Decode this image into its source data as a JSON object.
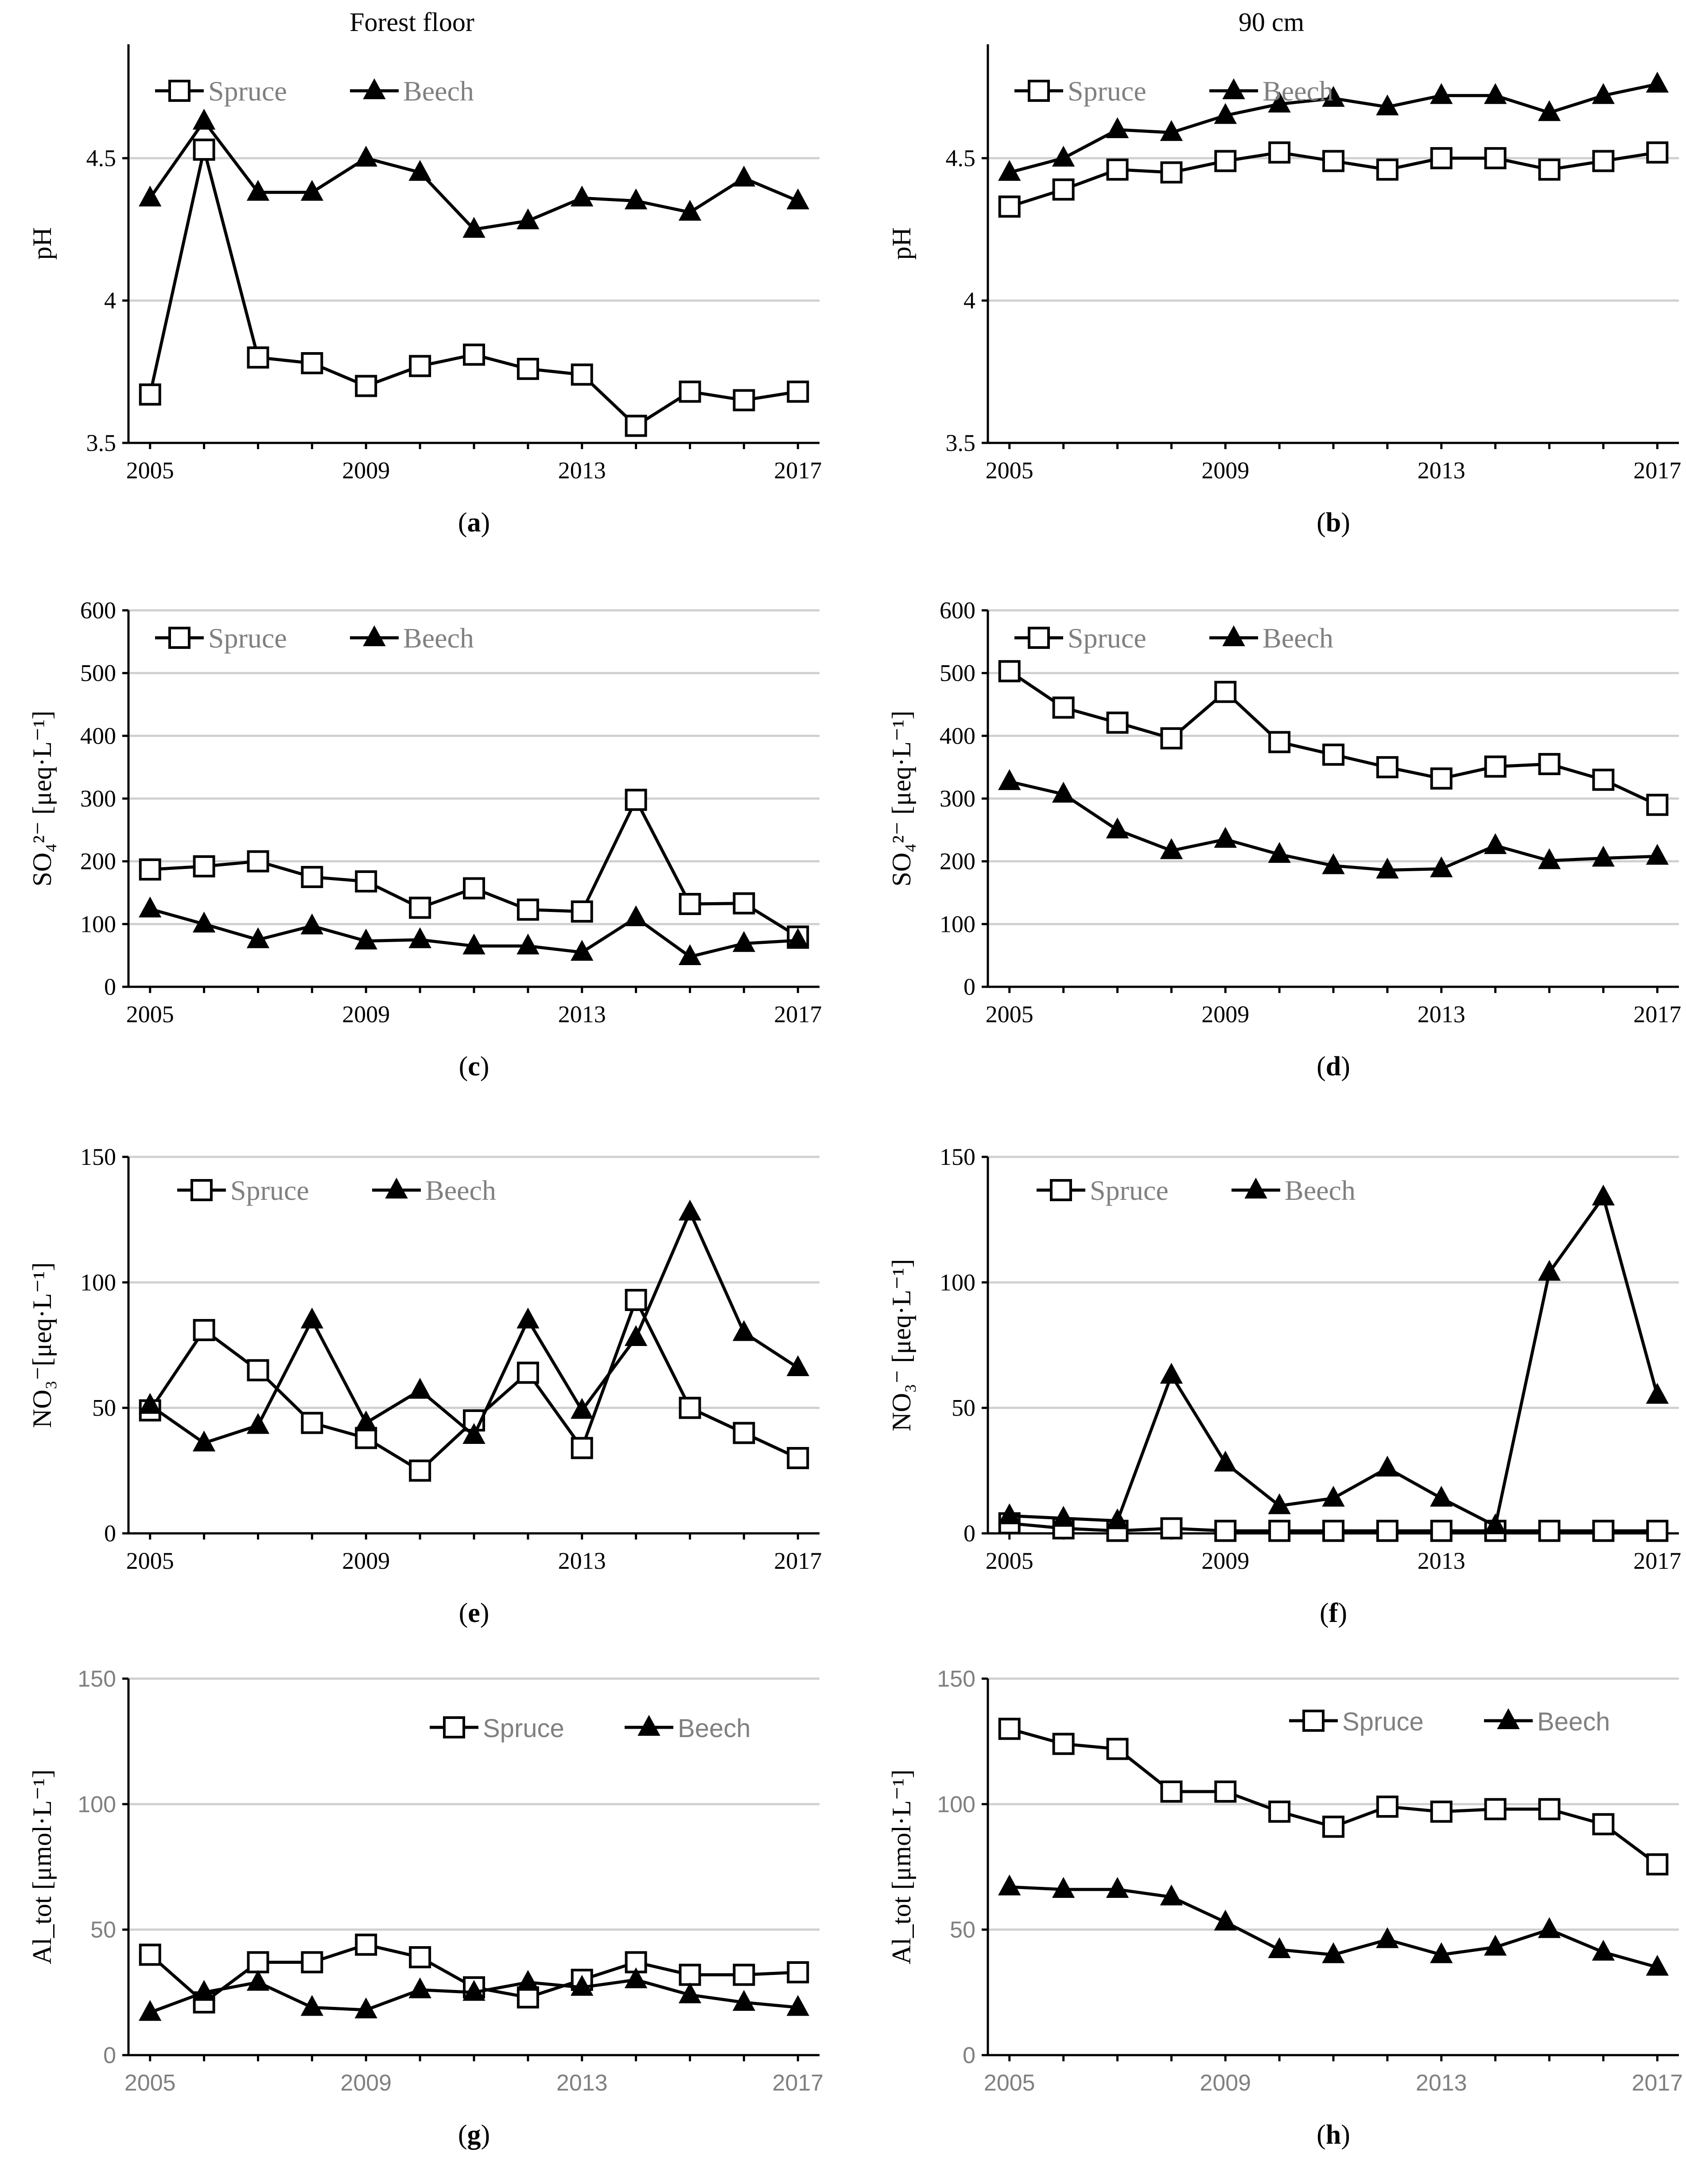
{
  "column_titles": [
    "Forest floor",
    "90 cm"
  ],
  "x_ticks": [
    2005,
    2009,
    2013,
    2017
  ],
  "x_years": [
    2005,
    2006,
    2007,
    2008,
    2009,
    2010,
    2011,
    2012,
    2013,
    2014,
    2015,
    2016,
    2017
  ],
  "colors": {
    "line": "#000000",
    "grid": "#d0d0d0",
    "legend_text": "#808080"
  },
  "chart_data": [
    {
      "id": "a",
      "caption_letter": "a",
      "type": "line",
      "ylabel": "pH",
      "ylim": [
        3.5,
        4.9
      ],
      "yticks": [
        3.5,
        4,
        4.5
      ],
      "ytick_labels": [
        "3.5",
        "4",
        "4.5"
      ],
      "grid": true,
      "legend_position": "top-left",
      "series": [
        {
          "name": "Spruce",
          "marker": "square",
          "values": [
            3.67,
            4.53,
            3.8,
            3.78,
            3.7,
            3.77,
            3.81,
            3.76,
            3.74,
            3.56,
            3.68,
            3.65,
            3.68
          ]
        },
        {
          "name": "Beech",
          "marker": "triangle",
          "values": [
            4.36,
            4.63,
            4.38,
            4.38,
            4.5,
            4.45,
            4.25,
            4.28,
            4.36,
            4.35,
            4.31,
            4.43,
            4.35
          ]
        }
      ]
    },
    {
      "id": "b",
      "caption_letter": "b",
      "type": "line",
      "ylabel": "pH",
      "ylim": [
        3.5,
        4.9
      ],
      "yticks": [
        3.5,
        4,
        4.5
      ],
      "ytick_labels": [
        "3.5",
        "4",
        "4.5"
      ],
      "grid": true,
      "legend_position": "top-left",
      "series": [
        {
          "name": "Spruce",
          "marker": "square",
          "values": [
            4.33,
            4.39,
            4.46,
            4.45,
            4.49,
            4.52,
            4.49,
            4.46,
            4.5,
            4.5,
            4.46,
            4.49,
            4.52
          ]
        },
        {
          "name": "Beech",
          "marker": "triangle",
          "values": [
            4.45,
            4.5,
            4.6,
            4.59,
            4.65,
            4.69,
            4.71,
            4.68,
            4.72,
            4.72,
            4.66,
            4.72,
            4.76
          ]
        }
      ]
    },
    {
      "id": "c",
      "caption_letter": "c",
      "type": "line",
      "ylabel": "SO₄²⁻ [μeq·L⁻¹]",
      "ylim": [
        0,
        600
      ],
      "yticks": [
        0,
        100,
        200,
        300,
        400,
        500,
        600
      ],
      "ytick_labels": [
        "0",
        "100",
        "200",
        "300",
        "400",
        "500",
        "600"
      ],
      "grid": true,
      "legend_position": "top-left",
      "series": [
        {
          "name": "Spruce",
          "marker": "square",
          "values": [
            187,
            192,
            200,
            175,
            168,
            126,
            157,
            123,
            120,
            298,
            132,
            133,
            80
          ]
        },
        {
          "name": "Beech",
          "marker": "triangle",
          "values": [
            124,
            100,
            75,
            97,
            73,
            75,
            65,
            65,
            55,
            110,
            48,
            69,
            74
          ]
        }
      ]
    },
    {
      "id": "d",
      "caption_letter": "d",
      "type": "line",
      "ylabel": "SO₄²⁻ [μeq·L⁻¹]",
      "ylim": [
        0,
        600
      ],
      "yticks": [
        0,
        100,
        200,
        300,
        400,
        500,
        600
      ],
      "ytick_labels": [
        "0",
        "100",
        "200",
        "300",
        "400",
        "500",
        "600"
      ],
      "grid": true,
      "legend_position": "top-left",
      "series": [
        {
          "name": "Spruce",
          "marker": "square",
          "values": [
            503,
            445,
            421,
            396,
            470,
            390,
            370,
            350,
            332,
            351,
            355,
            330,
            290
          ]
        },
        {
          "name": "Beech",
          "marker": "triangle",
          "values": [
            327,
            307,
            250,
            217,
            235,
            211,
            193,
            186,
            188,
            225,
            201,
            205,
            208
          ]
        }
      ]
    },
    {
      "id": "e",
      "caption_letter": "e",
      "type": "line",
      "ylabel": "NO₃⁻[μeq·L⁻¹]",
      "ylim": [
        0,
        150
      ],
      "yticks": [
        0,
        50,
        100,
        150
      ],
      "ytick_labels": [
        "0",
        "50",
        "100",
        "150"
      ],
      "grid": true,
      "legend_position": "top-left",
      "series": [
        {
          "name": "Spruce",
          "marker": "square",
          "values": [
            49,
            81,
            65,
            44,
            38,
            25,
            45,
            64,
            34,
            93,
            50,
            40,
            30
          ]
        },
        {
          "name": "Beech",
          "marker": "triangle",
          "values": [
            51,
            36,
            43,
            85,
            44,
            57,
            39,
            85,
            49,
            78,
            128,
            80,
            66
          ]
        }
      ]
    },
    {
      "id": "f",
      "caption_letter": "f",
      "type": "line",
      "ylabel": "NO₃⁻ [μeq·L⁻¹]",
      "ylim": [
        0,
        150
      ],
      "yticks": [
        0,
        50,
        100,
        150
      ],
      "ytick_labels": [
        "0",
        "50",
        "100",
        "150"
      ],
      "grid": true,
      "legend_position": "top-left",
      "series": [
        {
          "name": "Spruce",
          "marker": "square",
          "values": [
            4,
            2,
            1,
            2,
            1,
            1,
            1,
            1,
            1,
            1,
            1,
            1,
            1
          ]
        },
        {
          "name": "Beech",
          "marker": "triangle",
          "values": [
            7,
            6,
            5,
            63,
            28,
            11,
            14,
            26,
            14,
            3,
            104,
            134,
            55
          ]
        }
      ]
    },
    {
      "id": "g",
      "caption_letter": "g",
      "type": "line",
      "ylabel": "Al_tot [μmol·L⁻¹]",
      "ylim": [
        0,
        150
      ],
      "yticks": [
        0,
        50,
        100,
        150
      ],
      "ytick_labels": [
        "0",
        "50",
        "100",
        "150"
      ],
      "grid": true,
      "legend_position": "top-right",
      "series": [
        {
          "name": "Spruce",
          "marker": "square",
          "values": [
            40,
            21,
            37,
            37,
            44,
            39,
            27,
            23,
            30,
            37,
            32,
            32,
            33
          ]
        },
        {
          "name": "Beech",
          "marker": "triangle",
          "values": [
            17,
            25,
            29,
            19,
            18,
            26,
            25,
            29,
            27,
            30,
            24,
            21,
            19
          ]
        }
      ]
    },
    {
      "id": "h",
      "caption_letter": "h",
      "type": "line",
      "ylabel": "Al_tot [μmol·L⁻¹]",
      "ylim": [
        0,
        150
      ],
      "yticks": [
        0,
        50,
        100,
        150
      ],
      "ytick_labels": [
        "0",
        "50",
        "100",
        "150"
      ],
      "grid": true,
      "legend_position": "top-right",
      "series": [
        {
          "name": "Spruce",
          "marker": "square",
          "values": [
            130,
            124,
            122,
            105,
            105,
            97,
            91,
            99,
            97,
            98,
            98,
            92,
            76
          ]
        },
        {
          "name": "Beech",
          "marker": "triangle",
          "values": [
            67,
            66,
            66,
            63,
            53,
            42,
            40,
            46,
            40,
            43,
            50,
            41,
            35
          ]
        }
      ]
    }
  ]
}
